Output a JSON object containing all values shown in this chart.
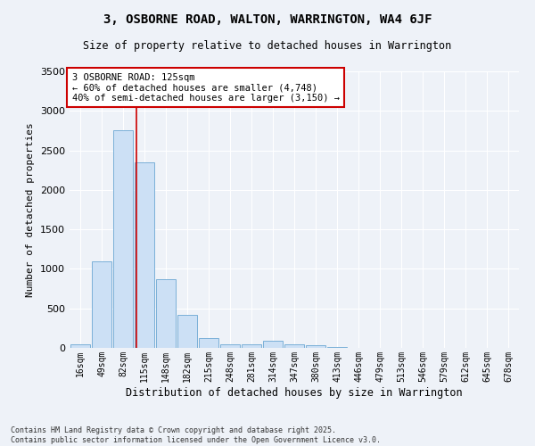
{
  "title": "3, OSBORNE ROAD, WALTON, WARRINGTON, WA4 6JF",
  "subtitle": "Size of property relative to detached houses in Warrington",
  "xlabel": "Distribution of detached houses by size in Warrington",
  "ylabel": "Number of detached properties",
  "bar_labels": [
    "16sqm",
    "49sqm",
    "82sqm",
    "115sqm",
    "148sqm",
    "182sqm",
    "215sqm",
    "248sqm",
    "281sqm",
    "314sqm",
    "347sqm",
    "380sqm",
    "413sqm",
    "446sqm",
    "479sqm",
    "513sqm",
    "546sqm",
    "579sqm",
    "612sqm",
    "645sqm",
    "678sqm"
  ],
  "bar_values": [
    50,
    1100,
    2750,
    2350,
    870,
    420,
    120,
    50,
    50,
    90,
    50,
    30,
    10,
    5,
    5,
    5,
    5,
    5,
    2,
    2,
    2
  ],
  "bar_color": "#cce0f5",
  "bar_edge_color": "#7ab0d8",
  "red_line_x": 2.62,
  "property_label": "3 OSBORNE ROAD: 125sqm",
  "annotation_line1": "← 60% of detached houses are smaller (4,748)",
  "annotation_line2": "40% of semi-detached houses are larger (3,150) →",
  "annotation_box_color": "#ffffff",
  "annotation_box_edge": "#cc0000",
  "red_line_color": "#cc0000",
  "ylim": [
    0,
    3500
  ],
  "yticks": [
    0,
    500,
    1000,
    1500,
    2000,
    2500,
    3000,
    3500
  ],
  "background_color": "#eef2f8",
  "grid_color": "#ffffff",
  "footer_line1": "Contains HM Land Registry data © Crown copyright and database right 2025.",
  "footer_line2": "Contains public sector information licensed under the Open Government Licence v3.0."
}
